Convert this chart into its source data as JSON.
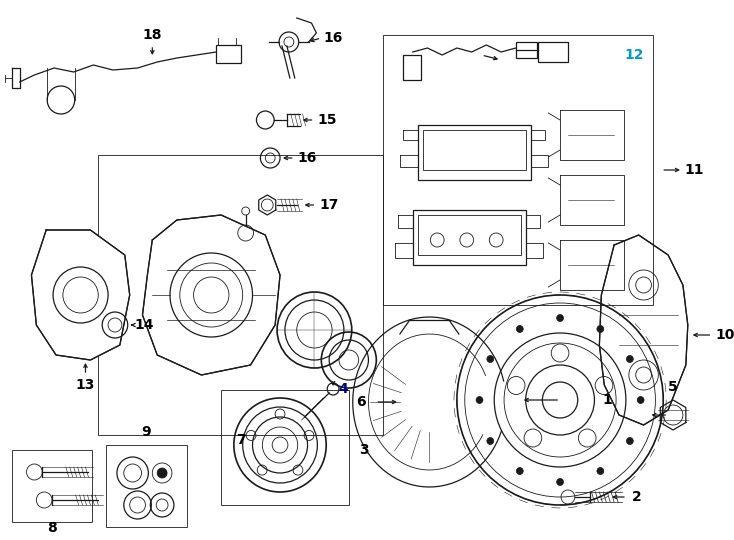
{
  "bg_color": "#ffffff",
  "line_color": "#1a1a1a",
  "fig_width": 7.34,
  "fig_height": 5.4,
  "dpi": 100,
  "label12_color": "#0099cc"
}
